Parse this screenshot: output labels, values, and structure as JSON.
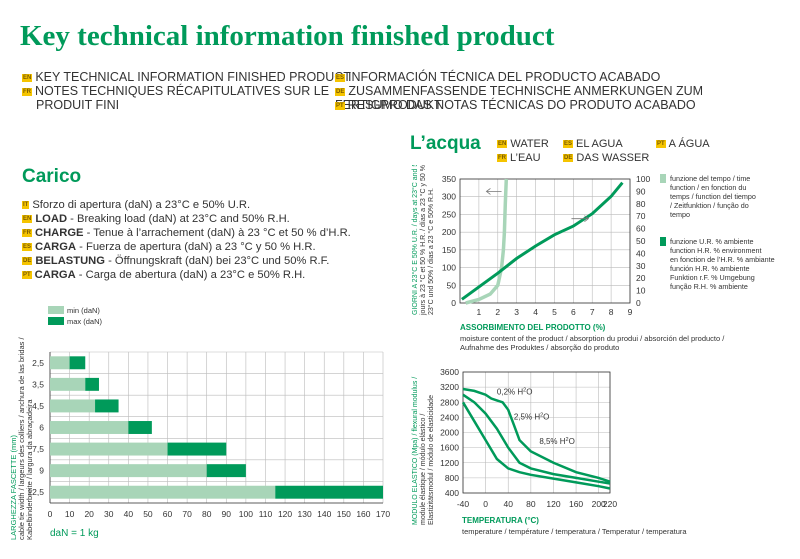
{
  "page": {
    "title": "Key technical information finished product"
  },
  "header_langs": [
    {
      "code": "EN",
      "text": "KEY TECHNICAL INFORMATION FINISHED PRODUCT"
    },
    {
      "code": "FR",
      "text": "NOTES TECHNIQUES RÉCAPITULATIVES SUR LE"
    },
    {
      "code": "",
      "text": "PRODUIT FINI"
    },
    {
      "code": "ES",
      "text": "INFORMACIÓN TÉCNICA DEL PRODUCTO ACABADO"
    },
    {
      "code": "DE",
      "text": "ZUSAMMENFASSENDE TECHNISCHE ANMERKUNGEN ZUM FERTIGPRODUKT"
    },
    {
      "code": "PT",
      "text": "RESUMO DAS NOTAS TÉCNICAS DO PRODUTO ACABADO"
    }
  ],
  "carico": {
    "title": "Carico",
    "lines": [
      {
        "code": "IT",
        "bold": "",
        "text": "Sforzo di apertura (daN) a 23°C e 50% U.R."
      },
      {
        "code": "EN",
        "bold": "LOAD",
        "text": " - Breaking load (daN) at 23°C and 50% R.H."
      },
      {
        "code": "FR",
        "bold": "CHARGE",
        "text": " - Tenue à l’arrachement (daN) à 23 °C et 50 % d’H.R."
      },
      {
        "code": "ES",
        "bold": "CARGA",
        "text": " - Fuerza de apertura (daN) a 23 °C y 50 % H.R."
      },
      {
        "code": "DE",
        "bold": "BELASTUNG",
        "text": " - Öffnungskraft (daN) bei 23°C und 50% R.F."
      },
      {
        "code": "PT",
        "bold": "CARGA",
        "text": " - Carga de abertura (daN) a 23°C e 50% R.H."
      }
    ],
    "footnote": "daN = 1 kg"
  },
  "lacqua": {
    "title": "L’acqua",
    "langs": [
      {
        "code": "EN",
        "text": "WATER"
      },
      {
        "code": "FR",
        "text": "L’EAU"
      },
      {
        "code": "ES",
        "text": "EL AGUA"
      },
      {
        "code": "DE",
        "text": "DAS WASSER"
      },
      {
        "code": "PT",
        "text": "A ÁGUA"
      }
    ],
    "legend_light": [
      "funzione del tempo / time",
      "function / en fonction du",
      "temps / function del tiempo",
      "/ Zeitfunktion / função do",
      "tempo"
    ],
    "legend_dark": [
      "funzione U.R. % ambiente",
      "function H.R. % environment",
      "en fonction de l’H.R. % ambiante",
      "función H.R. % ambiente",
      "Funktion r.F. % Umgebung",
      "função R.H. % ambiente"
    ]
  },
  "chart_data": [
    {
      "type": "bar",
      "subtype": "horizontal-stacked-range",
      "title": "Carico",
      "ylabel": [
        "LARGHEZZA FASCETTE (mm)",
        "cable tie width / largeurs des colliers / anchura de las bridas /",
        "Kabelbinderbreite / largura da abraçadeira"
      ],
      "xlabel": "daN",
      "categories": [
        "2,5",
        "3,5",
        "4,5",
        "6",
        "7,5",
        "9",
        "12,5"
      ],
      "series": [
        {
          "name": "min (daN)",
          "color": "#a8d5b8",
          "values": [
            10,
            18,
            23,
            40,
            60,
            80,
            115
          ]
        },
        {
          "name": "max (daN)",
          "color": "#009a5a",
          "values": [
            18,
            25,
            35,
            52,
            90,
            100,
            170
          ]
        }
      ],
      "xlim": [
        0,
        170
      ],
      "xticks": [
        0,
        10,
        20,
        30,
        40,
        50,
        60,
        70,
        80,
        90,
        100,
        110,
        120,
        130,
        140,
        150,
        160,
        170
      ]
    },
    {
      "type": "line",
      "title": "L’acqua",
      "xlabel": "ASSORBIMENTO DEL PRODOTTO (%)",
      "xlabel_sub": [
        "moisture content of the product / absorption du produi / absorción del producto /",
        "Aufnahme des Produktes / absorção do produto"
      ],
      "ylabel_left": [
        "GIORNI A 23°C E 50% U.R. / days at 23°C and 50% H.R. /",
        "jours à 23 °C et 50 % H.R. / días a 23 °C y 50 % / Tage bei",
        "23°C und 50% / dias a 23 °C e 50% R.H."
      ],
      "xlim": [
        0,
        9
      ],
      "ylim_left": [
        0,
        350
      ],
      "ylim_right": [
        0,
        100
      ],
      "xticks": [
        1,
        2,
        3,
        4,
        5,
        6,
        7,
        8,
        9
      ],
      "yticks_left": [
        0,
        50,
        100,
        150,
        200,
        250,
        300,
        350
      ],
      "yticks_right": [
        0,
        10,
        20,
        30,
        40,
        50,
        60,
        70,
        80,
        90,
        100
      ],
      "series": [
        {
          "name": "funzione del tempo",
          "axis": "left",
          "color": "#a8d5b8",
          "x": [
            0.3,
            1.0,
            1.6,
            2.0,
            2.2,
            2.3,
            2.35,
            2.4,
            2.45
          ],
          "y": [
            0,
            10,
            25,
            50,
            100,
            150,
            200,
            280,
            350
          ]
        },
        {
          "name": "funzione U.R. % ambiente",
          "axis": "right",
          "color": "#009a5a",
          "x": [
            0.1,
            1.0,
            2.0,
            3.0,
            4.0,
            5.0,
            6.0,
            7.0,
            8.0,
            8.6
          ],
          "y": [
            3,
            13,
            24,
            36,
            46,
            55,
            62,
            72,
            86,
            97
          ]
        }
      ]
    },
    {
      "type": "line",
      "xlabel": "TEMPERATURA (°C)",
      "xlabel_sub": "temperature / température / temperatura / Temperatur / temperatura",
      "ylabel": [
        "MODULO ELASTICO (Mpa) / flexural modulus /",
        "module élastique / módulo elástico /",
        "Elastizitätsmodul / módulo de elasticidade"
      ],
      "xlim": [
        -40,
        220
      ],
      "ylim": [
        400,
        3600
      ],
      "xticks": [
        -40,
        0,
        40,
        80,
        120,
        160,
        200,
        220
      ],
      "yticks": [
        400,
        800,
        1200,
        1600,
        2000,
        2400,
        2800,
        3200,
        3600
      ],
      "series": [
        {
          "name": "0,2% H2O",
          "label": "0,2% H",
          "label_sup": "2",
          "label_tail": "O",
          "color": "#009a5a",
          "x": [
            -40,
            -20,
            0,
            10,
            20,
            30,
            40,
            50,
            60,
            80,
            120,
            160,
            200,
            220
          ],
          "y": [
            3150,
            3100,
            3000,
            2900,
            2850,
            2800,
            2600,
            2200,
            1800,
            1500,
            1200,
            950,
            800,
            700
          ]
        },
        {
          "name": "2,5% H2O",
          "label": "2,5% H",
          "label_sup": "2",
          "label_tail": "O",
          "color": "#009a5a",
          "x": [
            -40,
            -20,
            0,
            20,
            40,
            60,
            80,
            120,
            160,
            200,
            220
          ],
          "y": [
            3000,
            2800,
            2500,
            2100,
            1600,
            1200,
            1050,
            900,
            800,
            700,
            650
          ]
        },
        {
          "name": "8,5% H2O",
          "label": "8,5% H",
          "label_sup": "2",
          "label_tail": "O",
          "color": "#009a5a",
          "x": [
            -40,
            -20,
            0,
            20,
            40,
            60,
            80,
            120,
            160,
            200,
            220
          ],
          "y": [
            2800,
            2300,
            1800,
            1300,
            1050,
            950,
            880,
            780,
            680,
            580,
            520
          ]
        }
      ]
    }
  ]
}
